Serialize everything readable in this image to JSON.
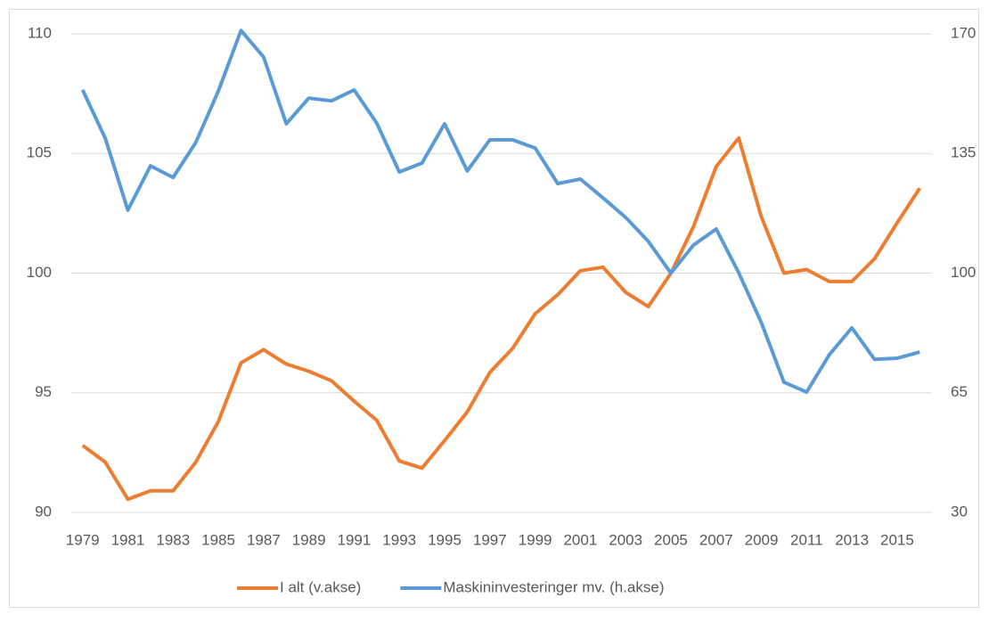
{
  "chart_data": {
    "type": "line",
    "categories": [
      "1979",
      null,
      "1981",
      null,
      "1983",
      null,
      "1985",
      null,
      "1987",
      null,
      "1989",
      null,
      "1991",
      null,
      "1993",
      null,
      "1995",
      null,
      "1997",
      null,
      "1999",
      null,
      "2001",
      null,
      "2003",
      null,
      "2005",
      null,
      "2007",
      null,
      "2009",
      null,
      "2011",
      null,
      "2013",
      null,
      "2015",
      null
    ],
    "series": [
      {
        "name": "I alt (v.akse)",
        "color": "#ed7d31",
        "axis": "y",
        "values": [
          92.8,
          92.1,
          90.55,
          90.9,
          90.9,
          92.1,
          93.8,
          96.25,
          96.8,
          96.2,
          95.9,
          95.5,
          94.65,
          93.85,
          92.15,
          91.85,
          93.0,
          94.2,
          95.85,
          96.85,
          98.3,
          99.1,
          100.1,
          100.25,
          99.2,
          98.6,
          100.0,
          101.95,
          104.45,
          105.65,
          102.35,
          100.0,
          100.15,
          99.65,
          99.65,
          100.6,
          102.1,
          103.55
        ]
      },
      {
        "name": "Maskininvesteringer mv. (h.akse)",
        "color": "#5b9bd5",
        "axis": "y2",
        "values": [
          153.6,
          139.5,
          118.4,
          131.4,
          128.0,
          138.2,
          153.3,
          171.0,
          163.2,
          143.7,
          151.2,
          150.4,
          153.6,
          143.9,
          129.6,
          132.2,
          143.7,
          129.9,
          139.0,
          139.0,
          136.6,
          126.2,
          127.5,
          122.0,
          116.3,
          109.3,
          100.0,
          108.2,
          112.9,
          100.1,
          85.5,
          68.1,
          65.2,
          76.1,
          84.0,
          74.8,
          75.1,
          76.9
        ]
      }
    ],
    "ylim": [
      90,
      110
    ],
    "yticks": [
      90,
      95,
      100,
      105,
      110
    ],
    "y2lim": [
      30,
      170
    ],
    "y2ticks": [
      30,
      65,
      100,
      135,
      170
    ],
    "grid": true,
    "legend": "bottom"
  }
}
